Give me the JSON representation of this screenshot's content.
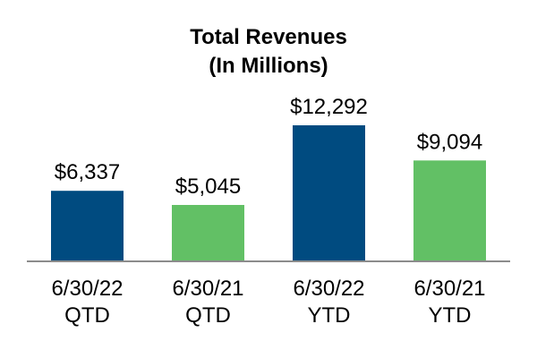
{
  "chart_data": {
    "type": "bar",
    "title": "Total Revenues",
    "subtitle": "(In Millions)",
    "categories": [
      [
        "6/30/22",
        "QTD"
      ],
      [
        "6/30/21",
        "QTD"
      ],
      [
        "6/30/22",
        "YTD"
      ],
      [
        "6/30/21",
        "YTD"
      ]
    ],
    "values": [
      6337,
      5045,
      12292,
      9094
    ],
    "value_labels": [
      "$6,337",
      "$5,045",
      "$12,292",
      "$9,094"
    ],
    "bar_colors": [
      "#004b80",
      "#62c065",
      "#004b80",
      "#62c065"
    ],
    "baseline_color": "#8c8c8c",
    "ylim": [
      0,
      12292
    ],
    "grid": false,
    "legend": "none"
  }
}
